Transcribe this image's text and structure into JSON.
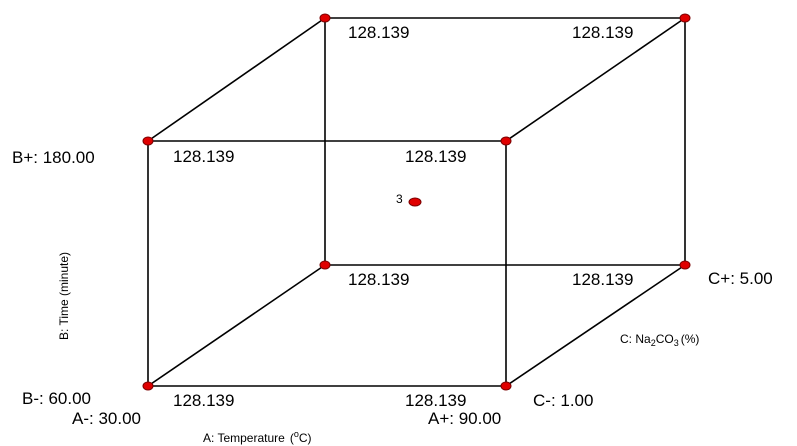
{
  "design": {
    "vertex_values": {
      "front_bottom_left": "128.139",
      "front_bottom_right": "128.139",
      "front_top_left": "128.139",
      "front_top_right": "128.139",
      "back_bottom_left": "128.139",
      "back_bottom_right": "128.139",
      "back_top_left": "128.139",
      "back_top_right": "128.139"
    },
    "center_point": {
      "count": "3"
    },
    "factor_a": {
      "name": "A: Temperature",
      "unit_prefix": "(",
      "unit_sup": "o",
      "unit_suffix": "C)",
      "low": "A-: 30.00",
      "high": "A+: 90.00"
    },
    "factor_b": {
      "name": "B: Time (minute)",
      "low": "B-: 60.00",
      "high": "B+: 180.00"
    },
    "factor_c": {
      "prefix": "C: Na",
      "sub1": "2",
      "mid": "CO",
      "sub2": "3",
      "suffix": "(%)",
      "low": "C-: 1.00",
      "high": "C+: 5.00"
    },
    "colors": {
      "node_fill": "#e00000",
      "edge": "#000000"
    }
  }
}
